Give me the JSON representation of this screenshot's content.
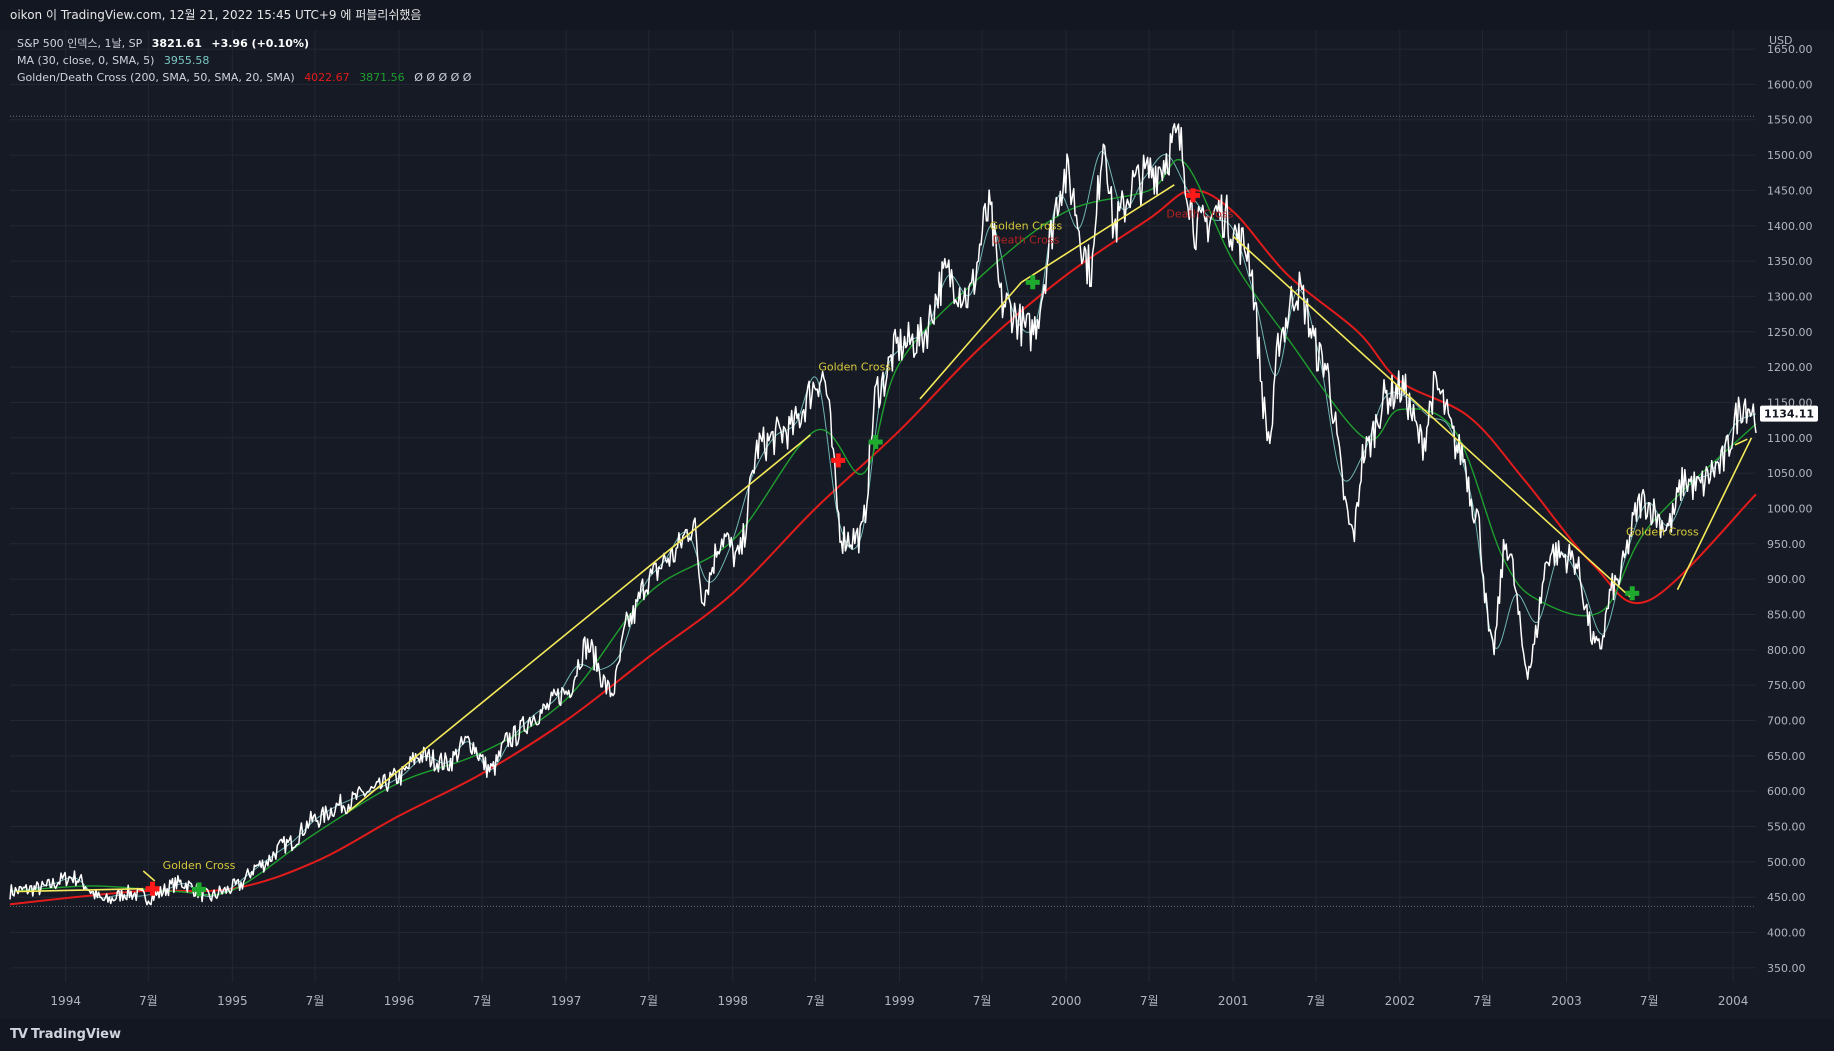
{
  "header": {
    "publish_text": "oikon 이 TradingView.com, 12월 21, 2022 15:45 UTC+9 에 퍼블리쉬했음"
  },
  "legend": {
    "symbol_title": "S&P 500 인덱스, 1날, SP",
    "last_price": "3821.61",
    "change": "+3.96 (+0.10%)",
    "ma_label": "MA (30, close, 0, SMA, 5)",
    "ma_value": "3955.58",
    "gdc_label": "Golden/Death Cross (200, SMA, 50, SMA, 20, SMA)",
    "gdc_val1": "4022.67",
    "gdc_val2": "3871.56",
    "gdc_empty": "Ø  Ø  Ø  Ø  Ø"
  },
  "footer": {
    "brand": "TradingView"
  },
  "colors": {
    "background": "#161a25",
    "price": "#ffffff",
    "sma200": "#e21b1b",
    "sma50": "#1e9e2e",
    "ma30": "#7ac7c2",
    "trendline": "#f5ea5a",
    "golden_label": "#d6c93a",
    "death_label": "#b22222",
    "axis_text": "#b2b5be",
    "last_price_badge": "#ffffff"
  },
  "chart_data": {
    "type": "line",
    "title": "S&P 500 인덱스, 1날, SP",
    "currency": "USD",
    "last_value_label": "1134.11",
    "y_ticks": [
      "350.00",
      "400.00",
      "450.00",
      "500.00",
      "550.00",
      "600.00",
      "650.00",
      "700.00",
      "750.00",
      "800.00",
      "850.00",
      "900.00",
      "950.00",
      "1000.00",
      "1050.00",
      "1100.00",
      "1150.00",
      "1200.00",
      "1250.00",
      "1300.00",
      "1350.00",
      "1400.00",
      "1450.00",
      "1500.00",
      "1550.00",
      "1600.00",
      "1650.00"
    ],
    "ylim": [
      330,
      1660
    ],
    "xlim": [
      "1993-09-01",
      "2004-02-20"
    ],
    "x_ticks": [
      {
        "label": "1994",
        "date": "1994-01-01"
      },
      {
        "label": "7월",
        "date": "1994-07-01"
      },
      {
        "label": "1995",
        "date": "1995-01-01"
      },
      {
        "label": "7월",
        "date": "1995-07-01"
      },
      {
        "label": "1996",
        "date": "1996-01-01"
      },
      {
        "label": "7월",
        "date": "1996-07-01"
      },
      {
        "label": "1997",
        "date": "1997-01-01"
      },
      {
        "label": "7월",
        "date": "1997-07-01"
      },
      {
        "label": "1998",
        "date": "1998-01-01"
      },
      {
        "label": "7월",
        "date": "1998-07-01"
      },
      {
        "label": "1999",
        "date": "1999-01-01"
      },
      {
        "label": "7월",
        "date": "1999-07-01"
      },
      {
        "label": "2000",
        "date": "2000-01-01"
      },
      {
        "label": "7월",
        "date": "2000-07-01"
      },
      {
        "label": "2001",
        "date": "2001-01-01"
      },
      {
        "label": "7월",
        "date": "2001-07-01"
      },
      {
        "label": "2002",
        "date": "2002-01-01"
      },
      {
        "label": "7월",
        "date": "2002-07-01"
      },
      {
        "label": "2003",
        "date": "2003-01-01"
      },
      {
        "label": "7월",
        "date": "2003-07-01"
      },
      {
        "label": "2004",
        "date": "2004-01-01"
      }
    ],
    "horizontal_lines": [
      1555,
      437
    ],
    "series": [
      {
        "key": "price",
        "dates": [
          "1993-09-01",
          "1993-11-01",
          "1994-01-15",
          "1994-03-30",
          "1994-05-15",
          "1994-07-01",
          "1994-09-10",
          "1994-11-15",
          "1994-12-10",
          "1995-01-10",
          "1995-03-01",
          "1995-05-01",
          "1995-07-01",
          "1995-09-01",
          "1995-11-01",
          "1996-01-01",
          "1996-02-15",
          "1996-04-15",
          "1996-06-01",
          "1996-07-20",
          "1996-09-01",
          "1996-11-01",
          "1997-01-01",
          "1997-02-15",
          "1997-04-10",
          "1997-05-20",
          "1997-07-01",
          "1997-08-15",
          "1997-10-07",
          "1997-10-27",
          "1997-12-10",
          "1998-01-12",
          "1998-03-01",
          "1998-05-01",
          "1998-07-17",
          "1998-08-31",
          "1998-10-08",
          "1998-11-15",
          "1999-01-01",
          "1999-02-15",
          "1999-04-15",
          "1999-06-01",
          "1999-07-16",
          "1999-08-15",
          "1999-10-15",
          "1999-12-31",
          "2000-02-25",
          "2000-03-24",
          "2000-04-15",
          "2000-06-01",
          "2000-07-15",
          "2000-09-01",
          "2000-10-15",
          "2000-12-01",
          "2001-01-30",
          "2001-03-22",
          "2001-04-15",
          "2001-05-21",
          "2001-07-15",
          "2001-09-21",
          "2001-10-15",
          "2001-12-05",
          "2002-01-04",
          "2002-02-20",
          "2002-03-19",
          "2002-05-15",
          "2002-06-15",
          "2002-07-23",
          "2002-08-22",
          "2002-10-09",
          "2002-11-27",
          "2003-01-14",
          "2003-03-11",
          "2003-04-15",
          "2003-06-17",
          "2003-08-11",
          "2003-09-18",
          "2003-10-15",
          "2003-12-01",
          "2004-01-26",
          "2004-02-20"
        ],
        "values": [
          458,
          462,
          478,
          445,
          456,
          450,
          470,
          450,
          458,
          465,
          495,
          525,
          560,
          582,
          600,
          620,
          650,
          640,
          670,
          630,
          675,
          710,
          740,
          805,
          740,
          842,
          900,
          930,
          975,
          880,
          960,
          930,
          1090,
          1110,
          1186,
          958,
          960,
          1170,
          1230,
          1240,
          1330,
          1300,
          1418,
          1290,
          1250,
          1469,
          1340,
          1527,
          1400,
          1460,
          1480,
          1520,
          1395,
          1420,
          1370,
          1100,
          1250,
          1310,
          1210,
          965,
          1080,
          1160,
          1170,
          1095,
          1170,
          1080,
          1000,
          800,
          950,
          776,
          938,
          930,
          800,
          890,
          1010,
          975,
          1040,
          1030,
          1060,
          1150,
          1134
        ]
      },
      {
        "key": "sma50",
        "dates": [
          "1993-09-01",
          "1994-03-01",
          "1994-09-01",
          "1995-01-01",
          "1995-07-01",
          "1996-01-01",
          "1996-07-01",
          "1997-01-01",
          "1997-07-01",
          "1998-01-01",
          "1998-07-01",
          "1998-10-15",
          "1999-01-01",
          "1999-07-01",
          "2000-01-01",
          "2000-07-01",
          "2000-09-15",
          "2001-01-01",
          "2001-05-01",
          "2001-10-15",
          "2002-01-01",
          "2002-05-01",
          "2002-08-15",
          "2002-11-01",
          "2003-03-20",
          "2003-07-01",
          "2004-02-20"
        ],
        "values": [
          458,
          466,
          458,
          460,
          540,
          612,
          655,
          730,
          880,
          955,
          1110,
          1050,
          1205,
          1330,
          1420,
          1450,
          1490,
          1350,
          1240,
          1100,
          1140,
          1110,
          930,
          870,
          855,
          975,
          1120
        ]
      },
      {
        "key": "sma200",
        "dates": [
          "1993-09-01",
          "1994-06-01",
          "1995-01-01",
          "1995-07-01",
          "1996-01-01",
          "1996-07-01",
          "1997-01-01",
          "1997-07-01",
          "1998-01-01",
          "1998-07-01",
          "1999-01-01",
          "1999-07-01",
          "2000-01-01",
          "2000-07-01",
          "2000-10-01",
          "2001-01-01",
          "2001-05-01",
          "2001-10-01",
          "2002-01-01",
          "2002-06-01",
          "2002-10-01",
          "2003-03-01",
          "2003-07-01",
          "2004-02-20"
        ],
        "values": [
          440,
          458,
          462,
          500,
          565,
          625,
          700,
          790,
          880,
          1000,
          1110,
          1230,
          1330,
          1410,
          1450,
          1420,
          1330,
          1250,
          1180,
          1130,
          1040,
          920,
          870,
          1020
        ]
      }
    ],
    "trendlines": [
      {
        "from": [
          "1993-09-15",
          458
        ],
        "to": [
          "1994-06-20",
          462
        ]
      },
      {
        "from": [
          "1994-06-20",
          487
        ],
        "to": [
          "1994-07-15",
          473
        ]
      },
      {
        "from": [
          "1995-09-10",
          570
        ],
        "to": [
          "1998-06-20",
          1104
        ]
      },
      {
        "from": [
          "1999-02-15",
          1155
        ],
        "to": [
          "1999-09-25",
          1320
        ]
      },
      {
        "from": [
          "1999-09-25",
          1320
        ],
        "to": [
          "2000-08-25",
          1458
        ]
      },
      {
        "from": [
          "2001-01-01",
          1385
        ],
        "to": [
          "2003-05-20",
          875
        ]
      },
      {
        "from": [
          "2003-09-01",
          885
        ],
        "to": [
          "2004-02-10",
          1100
        ]
      },
      {
        "from": [
          "2004-01-05",
          1090
        ],
        "to": [
          "2004-02-01",
          1098
        ]
      }
    ],
    "annotations": [
      {
        "text": "Golden Cross",
        "type": "golden",
        "date": "1994-10-20",
        "value": 490
      },
      {
        "text": "Golden Cross",
        "type": "golden",
        "date": "1998-09-25",
        "value": 1195
      },
      {
        "text": "Golden Cross",
        "type": "golden",
        "date": "1999-10-05",
        "value": 1395
      },
      {
        "text": "Death Cross",
        "type": "death",
        "date": "1999-10-05",
        "value": 1375
      },
      {
        "text": "Death Cross",
        "type": "death",
        "date": "2000-10-20",
        "value": 1412
      },
      {
        "text": "Golden Cross",
        "type": "golden",
        "date": "2003-07-30",
        "value": 962
      }
    ],
    "cross_markers": [
      {
        "type": "death",
        "date": "1994-07-10",
        "value": 462
      },
      {
        "type": "golden",
        "date": "1994-10-20",
        "value": 461
      },
      {
        "type": "death",
        "date": "1998-08-20",
        "value": 1068
      },
      {
        "type": "golden",
        "date": "1998-11-10",
        "value": 1094
      },
      {
        "type": "golden",
        "date": "1999-10-20",
        "value": 1320
      },
      {
        "type": "death",
        "date": "2000-10-05",
        "value": 1443
      },
      {
        "type": "golden",
        "date": "2003-05-25",
        "value": 880
      }
    ],
    "grid": true,
    "legend_position": "top-left"
  }
}
